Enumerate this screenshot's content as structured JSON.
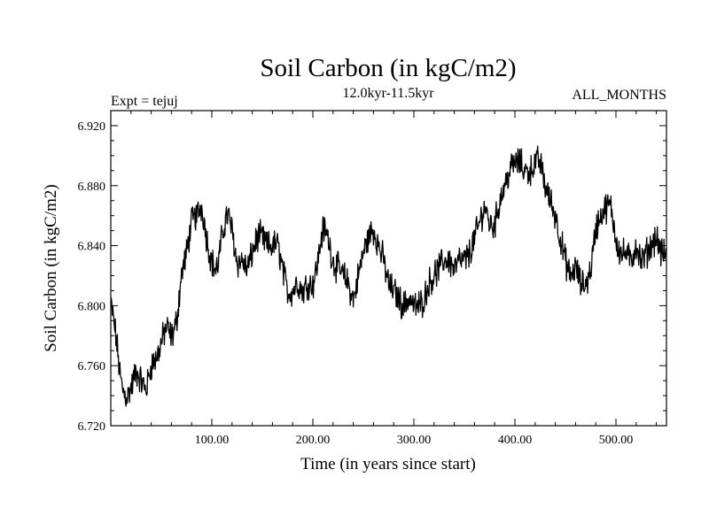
{
  "chart_data": {
    "type": "line",
    "title": "Soil Carbon (in kgC/m2)",
    "subtitle": "12.0kyr-11.5kyr",
    "left_label": "Expt = tejuj",
    "right_label": "ALL_MONTHS",
    "xlabel": "Time (in years since start)",
    "ylabel": "Soil Carbon (in kgC/m2)",
    "xlim": [
      0,
      550
    ],
    "ylim": [
      6.72,
      6.93
    ],
    "x_ticks": [
      100,
      200,
      300,
      400,
      500
    ],
    "x_tick_labels": [
      "100.00",
      "200.00",
      "300.00",
      "400.00",
      "500.00"
    ],
    "y_ticks": [
      6.72,
      6.76,
      6.8,
      6.84,
      6.88,
      6.92
    ],
    "y_tick_labels": [
      "6.720",
      "6.760",
      "6.800",
      "6.840",
      "6.880",
      "6.920"
    ],
    "grid": false,
    "series": [
      {
        "name": "Soil Carbon",
        "color": "#000000",
        "x": [
          0,
          5,
          10,
          15,
          20,
          25,
          30,
          35,
          40,
          45,
          50,
          55,
          60,
          65,
          70,
          75,
          80,
          85,
          90,
          95,
          100,
          105,
          110,
          115,
          120,
          125,
          130,
          135,
          140,
          145,
          150,
          155,
          160,
          165,
          170,
          175,
          180,
          185,
          190,
          195,
          200,
          205,
          210,
          215,
          220,
          225,
          230,
          235,
          240,
          245,
          250,
          255,
          260,
          265,
          270,
          275,
          280,
          285,
          290,
          295,
          300,
          305,
          310,
          315,
          320,
          325,
          330,
          335,
          340,
          345,
          350,
          355,
          360,
          365,
          370,
          375,
          380,
          385,
          390,
          395,
          400,
          405,
          410,
          415,
          420,
          425,
          430,
          435,
          440,
          445,
          450,
          455,
          460,
          465,
          470,
          475,
          480,
          485,
          490,
          495,
          500,
          505,
          510,
          515,
          520,
          525,
          530,
          535,
          540,
          545,
          550
        ],
        "values": [
          6.8,
          6.78,
          6.75,
          6.74,
          6.745,
          6.755,
          6.75,
          6.745,
          6.76,
          6.765,
          6.775,
          6.785,
          6.78,
          6.79,
          6.82,
          6.835,
          6.855,
          6.86,
          6.865,
          6.845,
          6.83,
          6.825,
          6.845,
          6.86,
          6.85,
          6.83,
          6.83,
          6.825,
          6.835,
          6.845,
          6.845,
          6.84,
          6.84,
          6.84,
          6.825,
          6.81,
          6.81,
          6.815,
          6.81,
          6.815,
          6.815,
          6.83,
          6.85,
          6.845,
          6.83,
          6.825,
          6.82,
          6.815,
          6.805,
          6.82,
          6.835,
          6.845,
          6.85,
          6.84,
          6.83,
          6.815,
          6.81,
          6.805,
          6.8,
          6.805,
          6.8,
          6.8,
          6.805,
          6.815,
          6.82,
          6.825,
          6.83,
          6.83,
          6.825,
          6.83,
          6.83,
          6.835,
          6.845,
          6.855,
          6.865,
          6.855,
          6.855,
          6.87,
          6.88,
          6.89,
          6.895,
          6.895,
          6.89,
          6.89,
          6.895,
          6.895,
          6.88,
          6.87,
          6.86,
          6.845,
          6.83,
          6.82,
          6.825,
          6.815,
          6.815,
          6.825,
          6.85,
          6.86,
          6.865,
          6.865,
          6.845,
          6.835,
          6.835,
          6.83,
          6.84,
          6.83,
          6.835,
          6.84,
          6.845,
          6.835,
          6.835
        ]
      }
    ]
  }
}
